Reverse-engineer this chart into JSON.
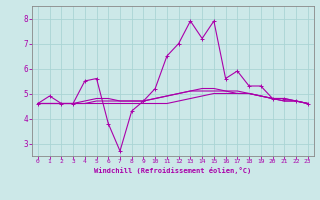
{
  "xlabel": "Windchill (Refroidissement éolien,°C)",
  "bg_color": "#cce8e8",
  "grid_color": "#aad4d4",
  "line_color": "#aa00aa",
  "xlim": [
    -0.5,
    23.5
  ],
  "ylim": [
    2.5,
    8.5
  ],
  "yticks": [
    3,
    4,
    5,
    6,
    7,
    8
  ],
  "xticks": [
    0,
    1,
    2,
    3,
    4,
    5,
    6,
    7,
    8,
    9,
    10,
    11,
    12,
    13,
    14,
    15,
    16,
    17,
    18,
    19,
    20,
    21,
    22,
    23
  ],
  "series1_x": [
    0,
    1,
    2,
    3,
    4,
    5,
    6,
    7,
    8,
    9,
    10,
    11,
    12,
    13,
    14,
    15,
    16,
    17,
    18,
    19,
    20,
    21,
    22,
    23
  ],
  "series1_y": [
    4.6,
    4.9,
    4.6,
    4.6,
    5.5,
    5.6,
    3.8,
    2.7,
    4.3,
    4.7,
    5.2,
    6.5,
    7.0,
    7.9,
    7.2,
    7.9,
    5.6,
    5.9,
    5.3,
    5.3,
    4.8,
    4.8,
    4.7,
    4.6
  ],
  "series2_x": [
    0,
    1,
    2,
    3,
    4,
    5,
    6,
    7,
    8,
    9,
    10,
    11,
    12,
    13,
    14,
    15,
    16,
    17,
    18,
    19,
    20,
    21,
    22,
    23
  ],
  "series2_y": [
    4.6,
    4.6,
    4.6,
    4.6,
    4.6,
    4.6,
    4.6,
    4.6,
    4.6,
    4.6,
    4.6,
    4.6,
    4.7,
    4.8,
    4.9,
    5.0,
    5.0,
    5.0,
    5.0,
    4.9,
    4.8,
    4.8,
    4.7,
    4.6
  ],
  "series3_x": [
    0,
    1,
    2,
    3,
    4,
    5,
    6,
    7,
    8,
    9,
    10,
    11,
    12,
    13,
    14,
    15,
    16,
    17,
    18,
    19,
    20,
    21,
    22,
    23
  ],
  "series3_y": [
    4.6,
    4.6,
    4.6,
    4.6,
    4.6,
    4.7,
    4.7,
    4.7,
    4.7,
    4.7,
    4.8,
    4.9,
    5.0,
    5.1,
    5.1,
    5.1,
    5.1,
    5.0,
    5.0,
    4.9,
    4.8,
    4.7,
    4.7,
    4.6
  ],
  "series4_x": [
    0,
    1,
    2,
    3,
    4,
    5,
    6,
    7,
    8,
    9,
    10,
    11,
    12,
    13,
    14,
    15,
    16,
    17,
    18,
    19,
    20,
    21,
    22,
    23
  ],
  "series4_y": [
    4.6,
    4.6,
    4.6,
    4.6,
    4.7,
    4.8,
    4.8,
    4.7,
    4.7,
    4.7,
    4.8,
    4.9,
    5.0,
    5.1,
    5.2,
    5.2,
    5.1,
    5.1,
    5.0,
    4.9,
    4.8,
    4.7,
    4.7,
    4.6
  ]
}
